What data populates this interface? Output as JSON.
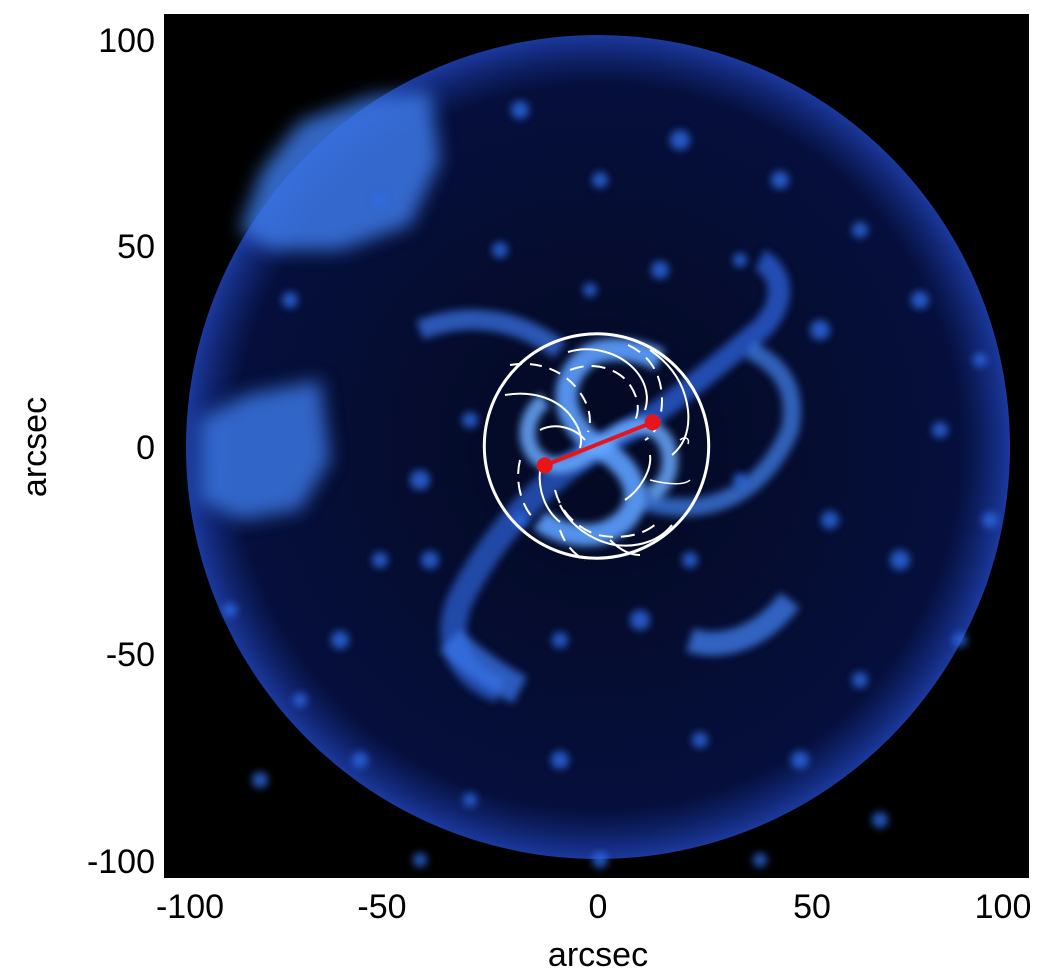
{
  "figure": {
    "x_axis_label": "arcsec",
    "y_axis_label": "arcsec",
    "x_ticks": [
      "-100",
      "-50",
      "0",
      "50",
      "100"
    ],
    "y_ticks": [
      "100",
      "50",
      "0",
      "-50",
      "-100"
    ]
  },
  "axes": {
    "xlim": [
      -100,
      100
    ],
    "ylim": [
      -100,
      100
    ]
  },
  "markers": {
    "circle_radius_arcsec": 26,
    "red_segment": {
      "p1": [
        -12,
        -4.5
      ],
      "p2": [
        13,
        5.5
      ]
    }
  },
  "colors": {
    "background": "#000000",
    "emission": "#2b6cf0",
    "highlight": "#8cc4ff",
    "overlay": "#ffffff",
    "marker": "#e8141c"
  }
}
